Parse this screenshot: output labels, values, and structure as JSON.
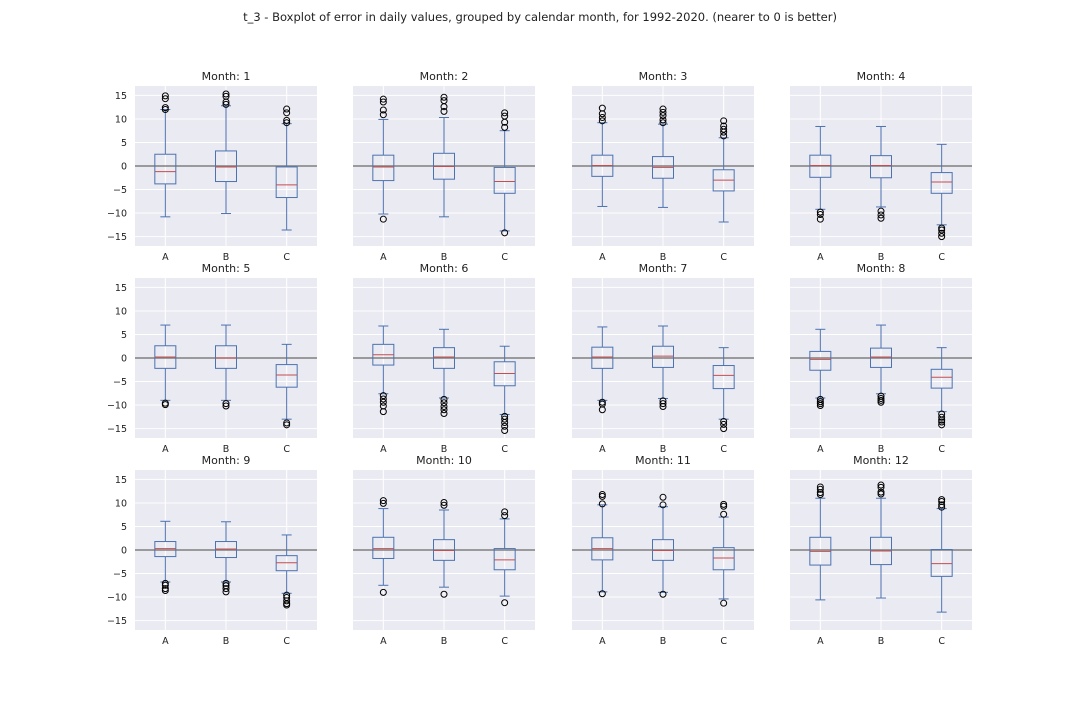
{
  "title": "t_3 - Boxplot of error in daily values, grouped by calendar month, for 1992-2020. (nearer to 0 is better)",
  "colors": {
    "panel_background": "#eaeaf2",
    "grid": "#ffffff",
    "box": "#4c72b0",
    "median": "#c44e52",
    "zero_line": "#808080",
    "flier": "#000000"
  },
  "chart_data": {
    "type": "boxplot",
    "layout": {
      "rows": 3,
      "cols": 4,
      "sharey": true,
      "grid": true
    },
    "categories": [
      "A",
      "B",
      "C"
    ],
    "ylim": [
      -17,
      17
    ],
    "yticks": [
      -15,
      -10,
      -5,
      0,
      5,
      10,
      15
    ],
    "ytick_labels": [
      "−15",
      "−10",
      "−5",
      "0",
      "5",
      "10",
      "15"
    ],
    "reference_line": 0,
    "panels": [
      {
        "title": "Month: 1",
        "boxes": [
          {
            "category": "A",
            "whislo": -10.8,
            "q1": -3.8,
            "med": -1.2,
            "q3": 2.5,
            "whishi": 12.0,
            "fliers": [
              12.0,
              12.4,
              14.3,
              14.9
            ]
          },
          {
            "category": "B",
            "whislo": -10.1,
            "q1": -3.3,
            "med": -0.2,
            "q3": 3.2,
            "whishi": 12.8,
            "fliers": [
              13.1,
              13.6,
              14.8,
              15.3
            ]
          },
          {
            "category": "C",
            "whislo": -13.6,
            "q1": -6.7,
            "med": -4.0,
            "q3": -0.2,
            "whishi": 9.0,
            "fliers": [
              9.2,
              9.7,
              11.3,
              12.1
            ]
          }
        ]
      },
      {
        "title": "Month: 2",
        "boxes": [
          {
            "category": "A",
            "whislo": -10.2,
            "q1": -3.1,
            "med": -0.2,
            "q3": 2.3,
            "whishi": 9.9,
            "fliers": [
              -11.3,
              10.9,
              11.9,
              13.6,
              14.2
            ]
          },
          {
            "category": "B",
            "whislo": -10.8,
            "q1": -2.8,
            "med": -0.1,
            "q3": 2.7,
            "whishi": 10.3,
            "fliers": [
              11.6,
              12.6,
              13.9,
              14.6
            ]
          },
          {
            "category": "C",
            "whislo": -13.8,
            "q1": -5.8,
            "med": -3.3,
            "q3": -0.3,
            "whishi": 7.5,
            "fliers": [
              -14.2,
              8.2,
              9.3,
              10.6,
              11.3
            ]
          }
        ]
      },
      {
        "title": "Month: 3",
        "boxes": [
          {
            "category": "A",
            "whislo": -8.6,
            "q1": -2.2,
            "med": 0.1,
            "q3": 2.3,
            "whishi": 9.2,
            "fliers": [
              9.6,
              10.3,
              11.1,
              12.3
            ]
          },
          {
            "category": "B",
            "whislo": -8.8,
            "q1": -2.6,
            "med": -0.3,
            "q3": 2.0,
            "whishi": 8.9,
            "fliers": [
              9.2,
              9.8,
              10.7,
              11.4,
              12.1
            ]
          },
          {
            "category": "C",
            "whislo": -11.9,
            "q1": -5.3,
            "med": -3.0,
            "q3": -0.8,
            "whishi": 6.0,
            "fliers": [
              6.4,
              7.2,
              7.8,
              8.5,
              9.6
            ]
          }
        ]
      },
      {
        "title": "Month: 4",
        "boxes": [
          {
            "category": "A",
            "whislo": -9.2,
            "q1": -2.4,
            "med": 0.1,
            "q3": 2.3,
            "whishi": 8.4,
            "fliers": [
              -9.8,
              -10.3,
              -11.3
            ]
          },
          {
            "category": "B",
            "whislo": -8.7,
            "q1": -2.5,
            "med": 0.1,
            "q3": 2.2,
            "whishi": 8.4,
            "fliers": [
              -9.6,
              -10.4,
              -11.1
            ]
          },
          {
            "category": "C",
            "whislo": -12.5,
            "q1": -5.8,
            "med": -3.4,
            "q3": -1.4,
            "whishi": 4.6,
            "fliers": [
              -13.2,
              -13.6,
              -14.3,
              -15.0
            ]
          }
        ]
      },
      {
        "title": "Month: 5",
        "boxes": [
          {
            "category": "A",
            "whislo": -9.0,
            "q1": -2.2,
            "med": 0.2,
            "q3": 2.6,
            "whishi": 7.0,
            "fliers": [
              -9.6,
              -9.9
            ]
          },
          {
            "category": "B",
            "whislo": -9.0,
            "q1": -2.2,
            "med": 0.0,
            "q3": 2.6,
            "whishi": 7.0,
            "fliers": [
              -9.7,
              -10.2
            ]
          },
          {
            "category": "C",
            "whislo": -13.0,
            "q1": -6.2,
            "med": -3.6,
            "q3": -1.4,
            "whishi": 2.9,
            "fliers": [
              -13.8,
              -14.2
            ]
          }
        ]
      },
      {
        "title": "Month: 6",
        "boxes": [
          {
            "category": "A",
            "whislo": -7.6,
            "q1": -1.5,
            "med": 0.7,
            "q3": 2.9,
            "whishi": 6.8,
            "fliers": [
              -8.0,
              -8.7,
              -9.4,
              -10.2,
              -11.4
            ]
          },
          {
            "category": "B",
            "whislo": -8.5,
            "q1": -2.2,
            "med": 0.2,
            "q3": 2.2,
            "whishi": 6.1,
            "fliers": [
              -8.8,
              -9.5,
              -10.3,
              -11.0,
              -11.8
            ]
          },
          {
            "category": "C",
            "whislo": -12.0,
            "q1": -5.9,
            "med": -3.3,
            "q3": -0.8,
            "whishi": 2.5,
            "fliers": [
              -12.4,
              -13.0,
              -13.7,
              -14.5,
              -15.4
            ]
          }
        ]
      },
      {
        "title": "Month: 7",
        "boxes": [
          {
            "category": "A",
            "whislo": -9.0,
            "q1": -2.2,
            "med": 0.2,
            "q3": 2.3,
            "whishi": 6.6,
            "fliers": [
              -9.4,
              -9.8,
              -11.0
            ]
          },
          {
            "category": "B",
            "whislo": -8.6,
            "q1": -2.0,
            "med": 0.4,
            "q3": 2.5,
            "whishi": 6.8,
            "fliers": [
              -9.1,
              -9.7,
              -10.3
            ]
          },
          {
            "category": "C",
            "whislo": -13.0,
            "q1": -6.5,
            "med": -3.7,
            "q3": -1.6,
            "whishi": 2.2,
            "fliers": [
              -13.5,
              -14.1,
              -15.0
            ]
          }
        ]
      },
      {
        "title": "Month: 8",
        "boxes": [
          {
            "category": "A",
            "whislo": -8.5,
            "q1": -2.6,
            "med": -0.3,
            "q3": 1.4,
            "whishi": 6.1,
            "fliers": [
              -8.8,
              -9.3,
              -9.7,
              -10.1
            ]
          },
          {
            "category": "B",
            "whislo": -7.6,
            "q1": -2.0,
            "med": 0.2,
            "q3": 2.1,
            "whishi": 7.0,
            "fliers": [
              -8.1,
              -8.6,
              -9.0,
              -9.4
            ]
          },
          {
            "category": "C",
            "whislo": -11.4,
            "q1": -6.4,
            "med": -4.1,
            "q3": -2.4,
            "whishi": 2.2,
            "fliers": [
              -11.9,
              -12.6,
              -13.2,
              -13.6,
              -14.2
            ]
          }
        ]
      },
      {
        "title": "Month: 9",
        "boxes": [
          {
            "category": "A",
            "whislo": -6.8,
            "q1": -1.4,
            "med": 0.3,
            "q3": 1.8,
            "whishi": 6.1,
            "fliers": [
              -7.1,
              -7.5,
              -8.2,
              -8.6
            ]
          },
          {
            "category": "B",
            "whislo": -6.8,
            "q1": -1.6,
            "med": 0.2,
            "q3": 1.8,
            "whishi": 6.0,
            "fliers": [
              -7.1,
              -7.6,
              -8.2,
              -8.9
            ]
          },
          {
            "category": "C",
            "whislo": -9.2,
            "q1": -4.4,
            "med": -2.7,
            "q3": -1.2,
            "whishi": 3.2,
            "fliers": [
              -9.6,
              -10.1,
              -10.8,
              -11.4,
              -11.7
            ]
          }
        ]
      },
      {
        "title": "Month: 10",
        "boxes": [
          {
            "category": "A",
            "whislo": -7.5,
            "q1": -1.8,
            "med": 0.3,
            "q3": 2.7,
            "whishi": 8.8,
            "fliers": [
              -9.0,
              9.9,
              10.5
            ]
          },
          {
            "category": "B",
            "whislo": -7.9,
            "q1": -2.2,
            "med": -0.1,
            "q3": 2.2,
            "whishi": 8.5,
            "fliers": [
              -9.4,
              9.5,
              10.1
            ]
          },
          {
            "category": "C",
            "whislo": -9.8,
            "q1": -4.2,
            "med": -2.1,
            "q3": 0.3,
            "whishi": 6.6,
            "fliers": [
              -11.2,
              7.3,
              8.1
            ]
          }
        ]
      },
      {
        "title": "Month: 11",
        "boxes": [
          {
            "category": "A",
            "whislo": -8.9,
            "q1": -2.1,
            "med": 0.3,
            "q3": 2.6,
            "whishi": 9.6,
            "fliers": [
              -9.3,
              9.8,
              11.4,
              11.8
            ]
          },
          {
            "category": "B",
            "whislo": -9.0,
            "q1": -2.2,
            "med": -0.1,
            "q3": 2.2,
            "whishi": 9.2,
            "fliers": [
              -9.4,
              9.6,
              11.2
            ]
          },
          {
            "category": "C",
            "whislo": -10.4,
            "q1": -4.2,
            "med": -1.7,
            "q3": 0.5,
            "whishi": 7.0,
            "fliers": [
              -11.3,
              7.6,
              9.3,
              9.7
            ]
          }
        ]
      },
      {
        "title": "Month: 12",
        "boxes": [
          {
            "category": "A",
            "whislo": -10.6,
            "q1": -3.2,
            "med": -0.3,
            "q3": 2.7,
            "whishi": 11.0,
            "fliers": [
              11.8,
              12.2,
              12.9,
              13.4
            ]
          },
          {
            "category": "B",
            "whislo": -10.2,
            "q1": -3.1,
            "med": -0.2,
            "q3": 2.7,
            "whishi": 11.0,
            "fliers": [
              11.9,
              12.3,
              13.3,
              13.8
            ]
          },
          {
            "category": "C",
            "whislo": -13.2,
            "q1": -5.6,
            "med": -2.9,
            "q3": 0.1,
            "whishi": 8.8,
            "fliers": [
              9.1,
              9.6,
              10.3,
              10.7
            ]
          }
        ]
      }
    ]
  }
}
